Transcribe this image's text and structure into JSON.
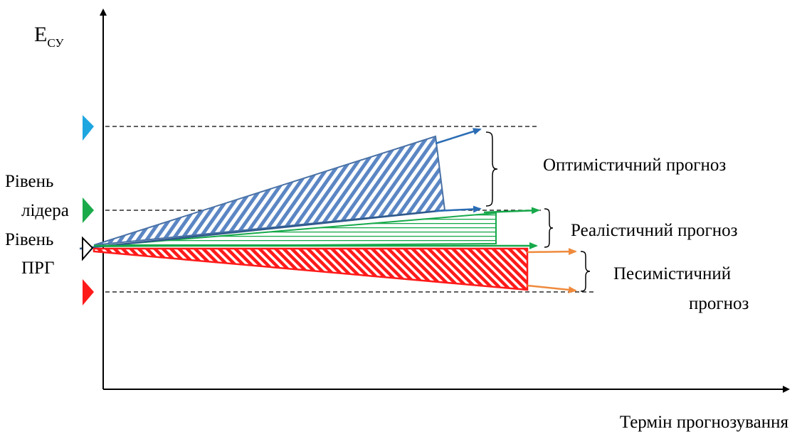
{
  "axes": {
    "y_label_main": "E",
    "y_label_sub": "СУ",
    "x_label": "Термін прогнозування"
  },
  "levels": {
    "leader": [
      "Рівень",
      "лідера"
    ],
    "prg": [
      "Рівень",
      "ПРГ"
    ]
  },
  "forecasts": {
    "optimistic": "Оптимістичний прогноз",
    "realistic": "Реалістичний прогноз",
    "pessimistic": [
      "Песимістичний",
      "прогноз"
    ]
  },
  "colors": {
    "optimistic_level_marker": "#1ea6e0",
    "leader_level_marker": "#1aaa4a",
    "pessimistic_level_marker": "#ff1a1a",
    "optimistic_fill": "#5b86c4",
    "optimistic_outline": "#4a72a6",
    "optimistic_arrow": "#2a6cb4",
    "realistic": "#16a94a",
    "pessimistic": "#ff1a1a",
    "pessimistic_arrow": "#ef8a3c",
    "axis": "#000000"
  },
  "icons": {
    "optimistic_level_marker": "triangle-right-icon",
    "leader_level_marker": "triangle-right-icon",
    "prg_level_marker": "triangle-right-outline-icon",
    "pessimistic_level_marker": "triangle-right-icon"
  }
}
